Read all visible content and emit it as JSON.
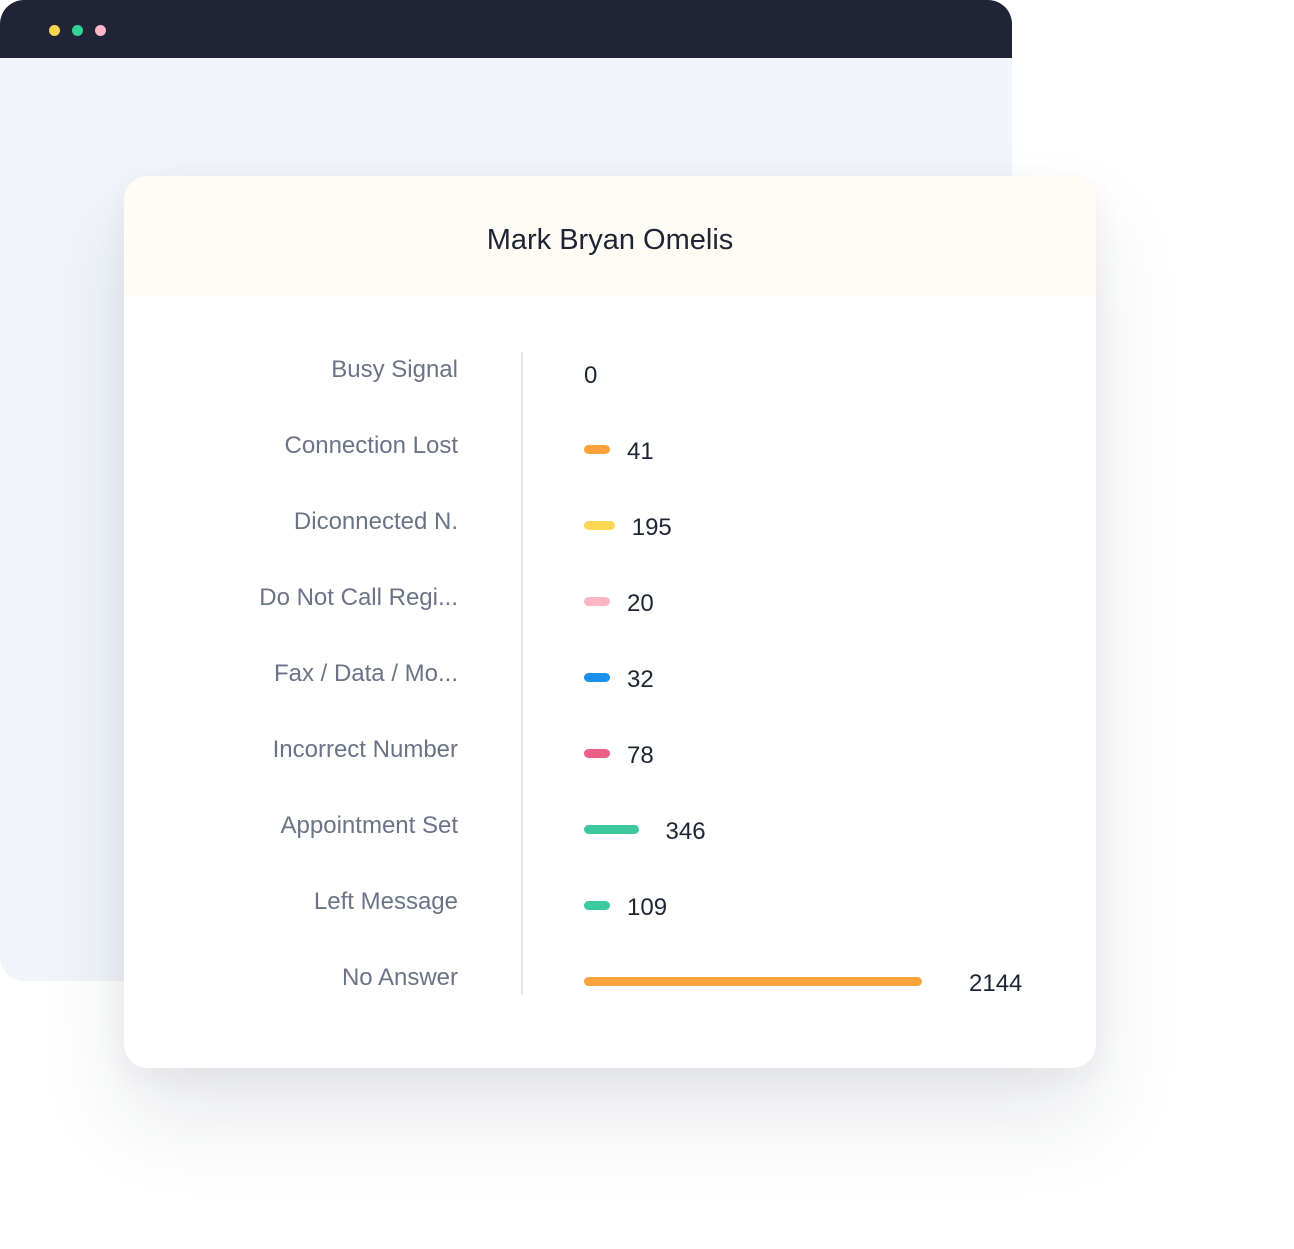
{
  "window": {
    "dots": [
      {
        "name": "yellow",
        "color": "#fcd34d"
      },
      {
        "name": "green",
        "color": "#34d399"
      },
      {
        "name": "pink",
        "color": "#fbb6c4"
      }
    ]
  },
  "card": {
    "title": "Mark Bryan Omelis"
  },
  "chart_data": {
    "type": "bar",
    "orientation": "horizontal",
    "title": "Mark Bryan Omelis",
    "grid": false,
    "categories": [
      "Busy Signal",
      "Connection Lost",
      "Diconnected N.",
      "Do Not Call Regi...",
      "Fax / Data / Mo...",
      "Incorrect Number",
      "Appointment Set",
      "Left Message",
      "No Answer"
    ],
    "values": [
      0,
      41,
      195,
      20,
      32,
      78,
      346,
      109,
      2144
    ],
    "colors": [
      "#fba23c",
      "#fba23c",
      "#fcd955",
      "#fbb6c4",
      "#1991eb",
      "#eb5e85",
      "#3cc99d",
      "#3cc99d",
      "#fba23c"
    ]
  }
}
